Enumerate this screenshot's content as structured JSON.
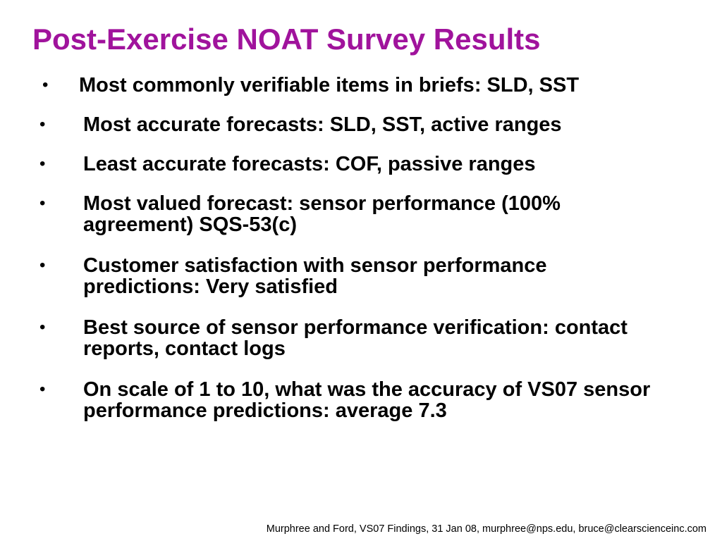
{
  "slide": {
    "title": "Post-Exercise NOAT Survey Results",
    "title_color": "#a0139c",
    "bullet_glyph": "•",
    "bullets": [
      "Most commonly verifiable items in briefs: SLD, SST",
      "Most accurate forecasts:  SLD, SST, active ranges",
      "Least accurate forecasts:  COF, passive ranges",
      "Most valued forecast:  sensor performance (100% agreement) SQS-53(c)",
      "Customer satisfaction with sensor performance predictions:  Very satisfied",
      "Best source of sensor performance verification: contact reports, contact logs",
      "On scale of 1 to 10, what was the accuracy of VS07 sensor performance predictions:  average 7.3"
    ],
    "footer": "Murphree and Ford, VS07 Findings, 31 Jan 08, murphree@nps.edu, bruce@clearscienceinc.com"
  }
}
